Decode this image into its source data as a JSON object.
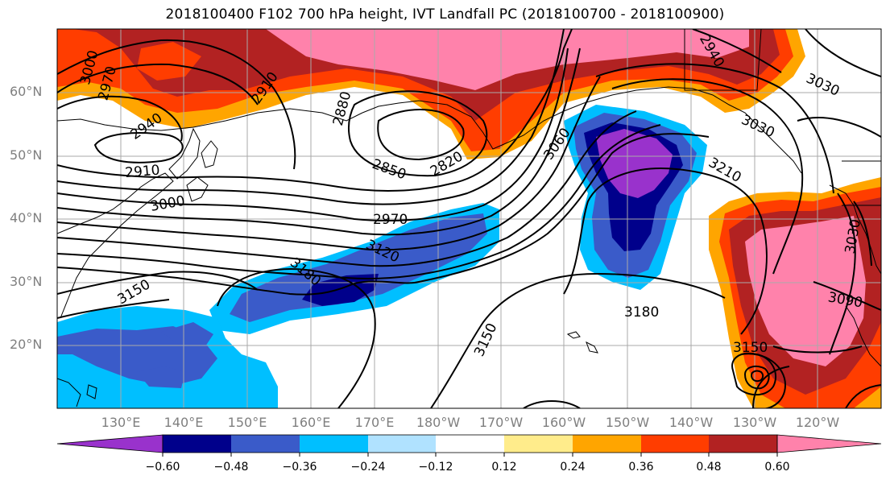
{
  "title": "2018100400 F102 700 hPa height, IVT Landfall PC (2018100700 - 2018100900)",
  "latitude_labels": [
    "60°N",
    "50°N",
    "40°N",
    "30°N",
    "20°N"
  ],
  "longitude_labels": [
    "130°E",
    "140°E",
    "150°E",
    "160°E",
    "170°E",
    "180°W",
    "170°W",
    "160°W",
    "150°W",
    "140°W",
    "130°W",
    "120°W"
  ],
  "colorbar": {
    "tick_labels": [
      "−0.60",
      "−0.48",
      "−0.36",
      "−0.24",
      "−0.12",
      "0.12",
      "0.24",
      "0.36",
      "0.48",
      "0.60"
    ],
    "colors": [
      "#9932CC",
      "#00008B",
      "#3A5BC9",
      "#00BFFF",
      "#B0E2FF",
      "#FFFFFF",
      "#FFEC8B",
      "#FFA500",
      "#FF3D00",
      "#B22222",
      "#FF82AB"
    ],
    "extend": "both"
  },
  "contour_labels": [
    "3000",
    "2970",
    "2940",
    "2910",
    "2880",
    "2850",
    "2820",
    "2910",
    "3000",
    "2970",
    "3120",
    "3060",
    "3150",
    "3180",
    "3150",
    "3180",
    "3210",
    "3150",
    "3090",
    "3030",
    "3030",
    "3030",
    "2940"
  ],
  "colors": {
    "grid": "#a9a9a9",
    "coast": "#000000",
    "contour": "#000000",
    "axis_text": "#7f7f7f"
  }
}
